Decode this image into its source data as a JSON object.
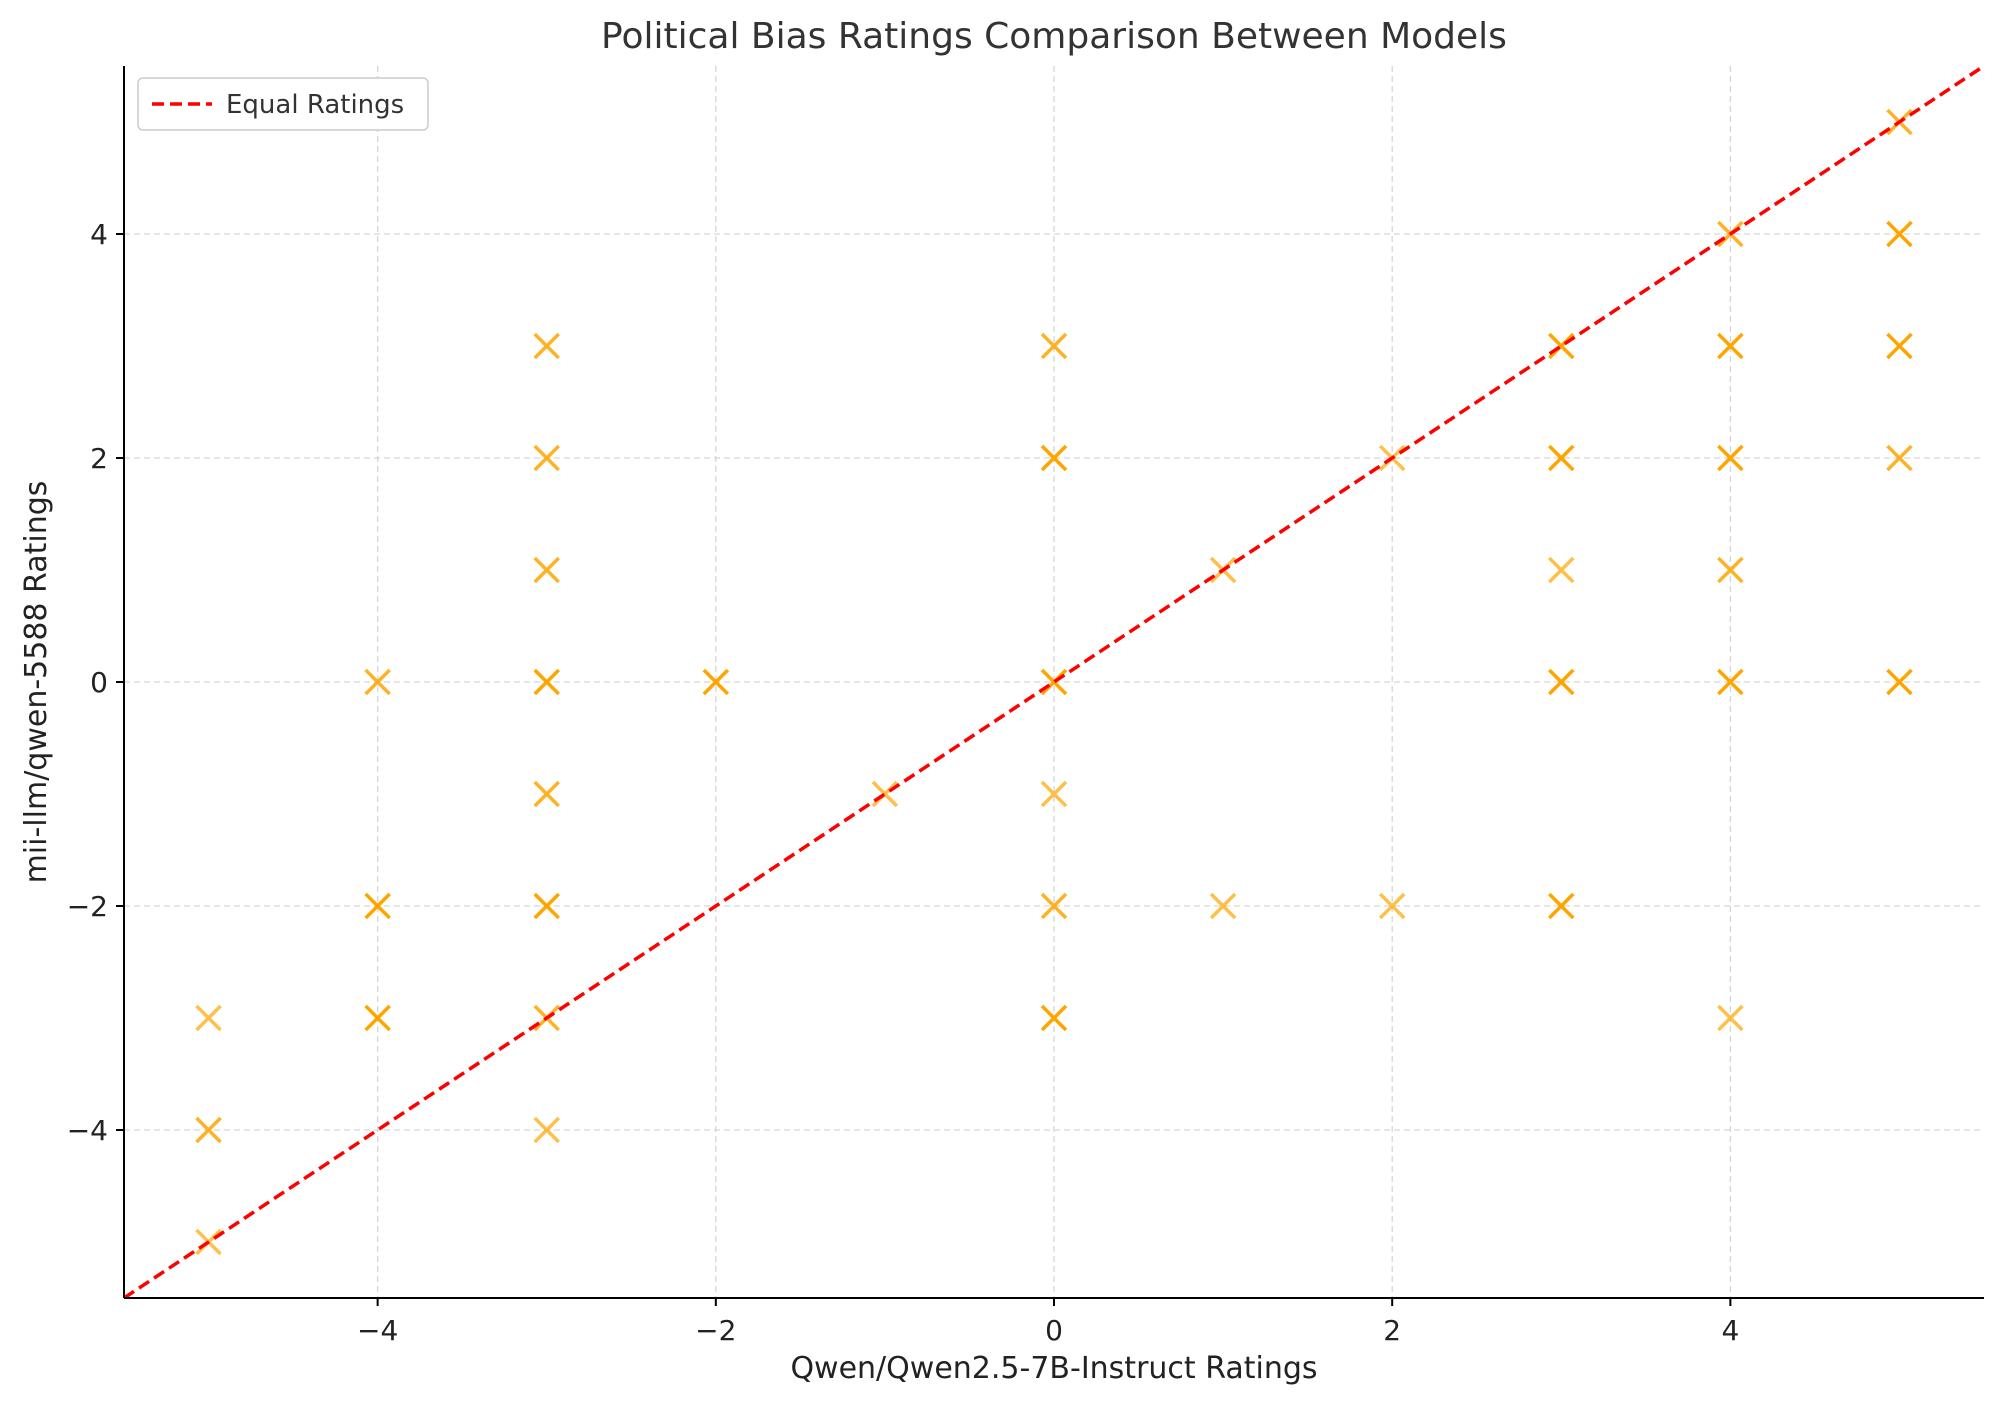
{
  "chart_data": {
    "type": "scatter",
    "title": "Political Bias Ratings Comparison Between Models",
    "xlabel": "Qwen/Qwen2.5-7B-Instruct Ratings",
    "ylabel": "mii-llm/qwen-5588 Ratings",
    "xlim": [
      -5.5,
      5.5
    ],
    "ylim": [
      -5.5,
      5.5
    ],
    "xticks": [
      -4,
      -2,
      0,
      2,
      4
    ],
    "yticks": [
      -4,
      -2,
      0,
      2,
      4
    ],
    "xtick_labels": [
      "−4",
      "−2",
      "0",
      "2",
      "4"
    ],
    "ytick_labels": [
      "−4",
      "−2",
      "0",
      "2",
      "4"
    ],
    "grid": true,
    "legend": {
      "placement": "top-left",
      "entries": [
        "Equal Ratings"
      ]
    },
    "marker": "x",
    "marker_color": "#FFA500",
    "reference_line": {
      "name": "Equal Ratings",
      "color": "#FF0000",
      "style": "dashed",
      "slope": 1,
      "intercept": 0
    },
    "points": [
      {
        "x": -5,
        "y": -3,
        "n": 1
      },
      {
        "x": -5,
        "y": -4,
        "n": 2
      },
      {
        "x": -5,
        "y": -5,
        "n": 1
      },
      {
        "x": -4,
        "y": 0,
        "n": 2
      },
      {
        "x": -4,
        "y": -2,
        "n": 3
      },
      {
        "x": -4,
        "y": -3,
        "n": 3
      },
      {
        "x": -3,
        "y": 3,
        "n": 2
      },
      {
        "x": -3,
        "y": 2,
        "n": 2
      },
      {
        "x": -3,
        "y": 1,
        "n": 2
      },
      {
        "x": -3,
        "y": 0,
        "n": 3
      },
      {
        "x": -3,
        "y": -1,
        "n": 2
      },
      {
        "x": -3,
        "y": -2,
        "n": 3
      },
      {
        "x": -3,
        "y": -3,
        "n": 2
      },
      {
        "x": -3,
        "y": -4,
        "n": 1
      },
      {
        "x": -2,
        "y": 0,
        "n": 3
      },
      {
        "x": -1,
        "y": -1,
        "n": 1
      },
      {
        "x": 0,
        "y": 3,
        "n": 2
      },
      {
        "x": 0,
        "y": 2,
        "n": 3
      },
      {
        "x": 0,
        "y": 0,
        "n": 3
      },
      {
        "x": 0,
        "y": -1,
        "n": 1
      },
      {
        "x": 0,
        "y": -2,
        "n": 2
      },
      {
        "x": 0,
        "y": -3,
        "n": 3
      },
      {
        "x": 1,
        "y": 1,
        "n": 1
      },
      {
        "x": 1,
        "y": -2,
        "n": 1
      },
      {
        "x": 2,
        "y": 2,
        "n": 1
      },
      {
        "x": 2,
        "y": -2,
        "n": 1
      },
      {
        "x": 3,
        "y": 3,
        "n": 3
      },
      {
        "x": 3,
        "y": 2,
        "n": 3
      },
      {
        "x": 3,
        "y": 1,
        "n": 1
      },
      {
        "x": 3,
        "y": 0,
        "n": 3
      },
      {
        "x": 3,
        "y": -2,
        "n": 3
      },
      {
        "x": 4,
        "y": 4,
        "n": 2
      },
      {
        "x": 4,
        "y": 3,
        "n": 3
      },
      {
        "x": 4,
        "y": 2,
        "n": 3
      },
      {
        "x": 4,
        "y": 1,
        "n": 2
      },
      {
        "x": 4,
        "y": 0,
        "n": 3
      },
      {
        "x": 4,
        "y": -3,
        "n": 1
      },
      {
        "x": 5,
        "y": 5,
        "n": 2
      },
      {
        "x": 5,
        "y": 4,
        "n": 3
      },
      {
        "x": 5,
        "y": 3,
        "n": 3
      },
      {
        "x": 5,
        "y": 2,
        "n": 2
      },
      {
        "x": 5,
        "y": 0,
        "n": 3
      }
    ]
  }
}
